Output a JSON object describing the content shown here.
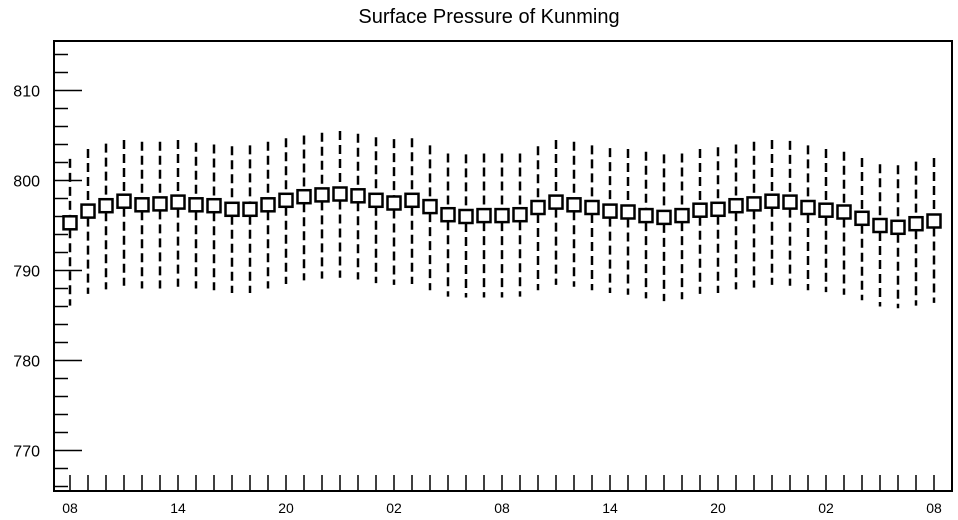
{
  "chart_data": {
    "type": "boxplot",
    "title": "Surface Pressure of Kunming",
    "xlabel": "",
    "ylabel": "",
    "ylim": [
      765.5,
      815.5
    ],
    "y_major_ticks": [
      770,
      780,
      790,
      800,
      810
    ],
    "y_minor_step": 2,
    "grid": false,
    "legend": "none",
    "x_tick_labels": [
      {
        "i": 0,
        "label": "08"
      },
      {
        "i": 6,
        "label": "14"
      },
      {
        "i": 12,
        "label": "20"
      },
      {
        "i": 18,
        "label": "02"
      },
      {
        "i": 24,
        "label": "08"
      },
      {
        "i": 30,
        "label": "14"
      },
      {
        "i": 36,
        "label": "20"
      },
      {
        "i": 42,
        "label": "02"
      },
      {
        "i": 48,
        "label": "08"
      }
    ],
    "x_positions": 49,
    "series": [
      {
        "median": [
          795.3,
          796.6,
          797.2,
          797.7,
          797.3,
          797.4,
          797.6,
          797.3,
          797.2,
          796.8,
          796.8,
          797.3,
          797.8,
          798.2,
          798.4,
          798.5,
          798.3,
          797.8,
          797.5,
          797.8,
          797.1,
          796.2,
          796.0,
          796.1,
          796.1,
          796.2,
          797.0,
          797.6,
          797.3,
          797.0,
          796.6,
          796.5,
          796.1,
          795.9,
          796.1,
          796.7,
          796.8,
          797.2,
          797.4,
          797.7,
          797.6,
          797.0,
          796.7,
          796.5,
          795.8,
          795.0,
          794.8,
          795.2,
          795.5
        ],
        "whisker_high": [
          802.4,
          803.5,
          804.1,
          804.5,
          804.3,
          804.3,
          804.5,
          804.2,
          804.0,
          803.8,
          803.9,
          804.3,
          804.7,
          805.0,
          805.3,
          805.5,
          805.2,
          804.8,
          804.6,
          804.7,
          803.9,
          803.0,
          802.9,
          803.0,
          803.0,
          803.0,
          803.8,
          804.5,
          804.3,
          803.9,
          803.6,
          803.5,
          803.2,
          802.9,
          803.0,
          803.5,
          803.7,
          804.0,
          804.3,
          804.5,
          804.4,
          803.9,
          803.5,
          803.2,
          802.5,
          801.8,
          801.7,
          802.1,
          802.5
        ],
        "whisker_low": [
          786.1,
          787.4,
          787.9,
          788.3,
          788.0,
          788.0,
          788.2,
          788.0,
          787.8,
          787.5,
          787.5,
          788.0,
          788.5,
          788.9,
          789.1,
          789.2,
          789.0,
          788.6,
          788.4,
          788.5,
          787.8,
          787.1,
          787.0,
          787.0,
          787.0,
          787.1,
          787.8,
          788.4,
          788.2,
          787.8,
          787.5,
          787.3,
          786.9,
          786.6,
          786.8,
          787.4,
          787.5,
          787.9,
          788.1,
          788.4,
          788.3,
          787.8,
          787.6,
          787.3,
          786.7,
          786.0,
          785.8,
          786.1,
          786.4
        ]
      }
    ]
  }
}
